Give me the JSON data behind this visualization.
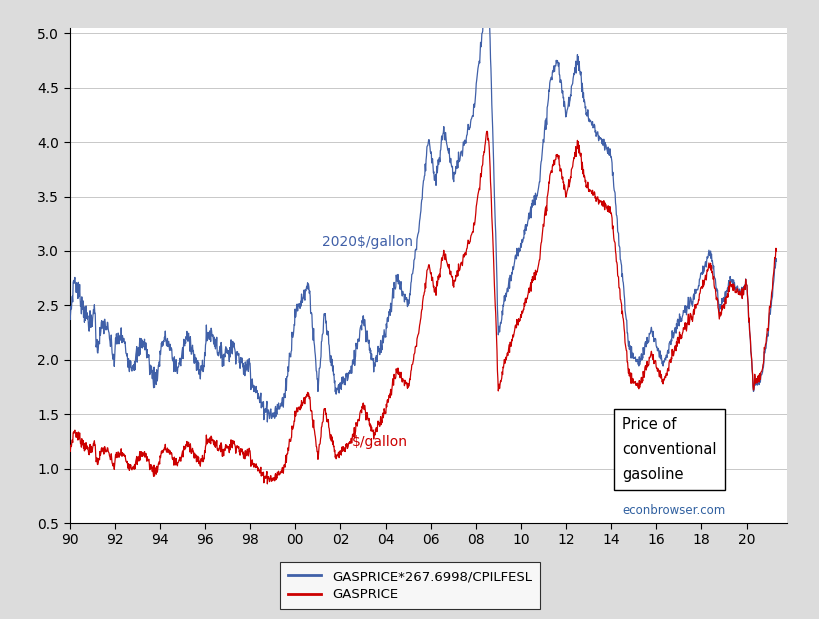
{
  "bg_color": "#dcdcdc",
  "plot_bg": "#ffffff",
  "blue_color": "#4060a8",
  "red_color": "#cc0000",
  "ylim": [
    0.5,
    5.05
  ],
  "yticks": [
    0.5,
    1.0,
    1.5,
    2.0,
    2.5,
    3.0,
    3.5,
    4.0,
    4.5,
    5.0
  ],
  "xlim": [
    1990.0,
    2021.8
  ],
  "xlabel_vals": [
    "90",
    "92",
    "94",
    "96",
    "98",
    "00",
    "02",
    "04",
    "06",
    "08",
    "10",
    "12",
    "14",
    "16",
    "18",
    "20"
  ],
  "annotation_blue": "2020$/gallon",
  "annotation_red": "$/gallon",
  "legend_labels": [
    "GASPRICE*267.6998/CPILFESL",
    "GASPRICE"
  ],
  "grid_color": "#c8c8c8"
}
